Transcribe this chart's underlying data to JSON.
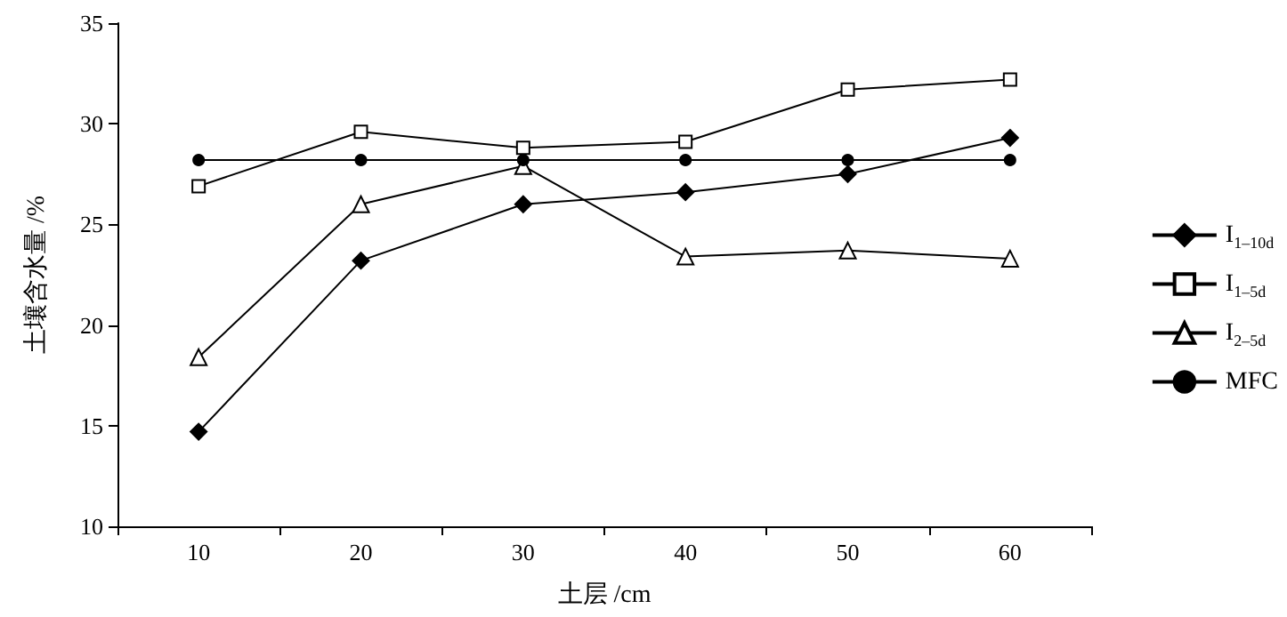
{
  "chart_data": {
    "type": "line",
    "xlabel": "土层 /cm",
    "ylabel": "土壤含水量 /%",
    "categories": [
      "10",
      "20",
      "30",
      "40",
      "50",
      "60"
    ],
    "series": [
      {
        "name": "I$_{1–10d}$",
        "color": "#000000",
        "marker": "diamond",
        "values": [
          14.7,
          23.2,
          26.0,
          26.6,
          27.5,
          29.3
        ]
      },
      {
        "name": "I$_{1–5d}$",
        "color": "#000000",
        "marker": "square",
        "values": [
          26.9,
          29.6,
          28.8,
          29.1,
          31.7,
          32.2
        ]
      },
      {
        "name": "I$_{2–5d}$",
        "color": "#000000",
        "marker": "triangle",
        "values": [
          18.4,
          26.0,
          27.9,
          23.4,
          23.7,
          23.3
        ]
      },
      {
        "name": "MFC",
        "color": "#000000",
        "marker": "circle",
        "values": [
          28.2,
          28.2,
          28.2,
          28.2,
          28.2,
          28.2
        ]
      }
    ],
    "ylim": [
      10,
      35
    ],
    "yticks": [
      10,
      15,
      20,
      25,
      30,
      35
    ],
    "grid": false,
    "legend": "right",
    "line_style": "solid"
  }
}
